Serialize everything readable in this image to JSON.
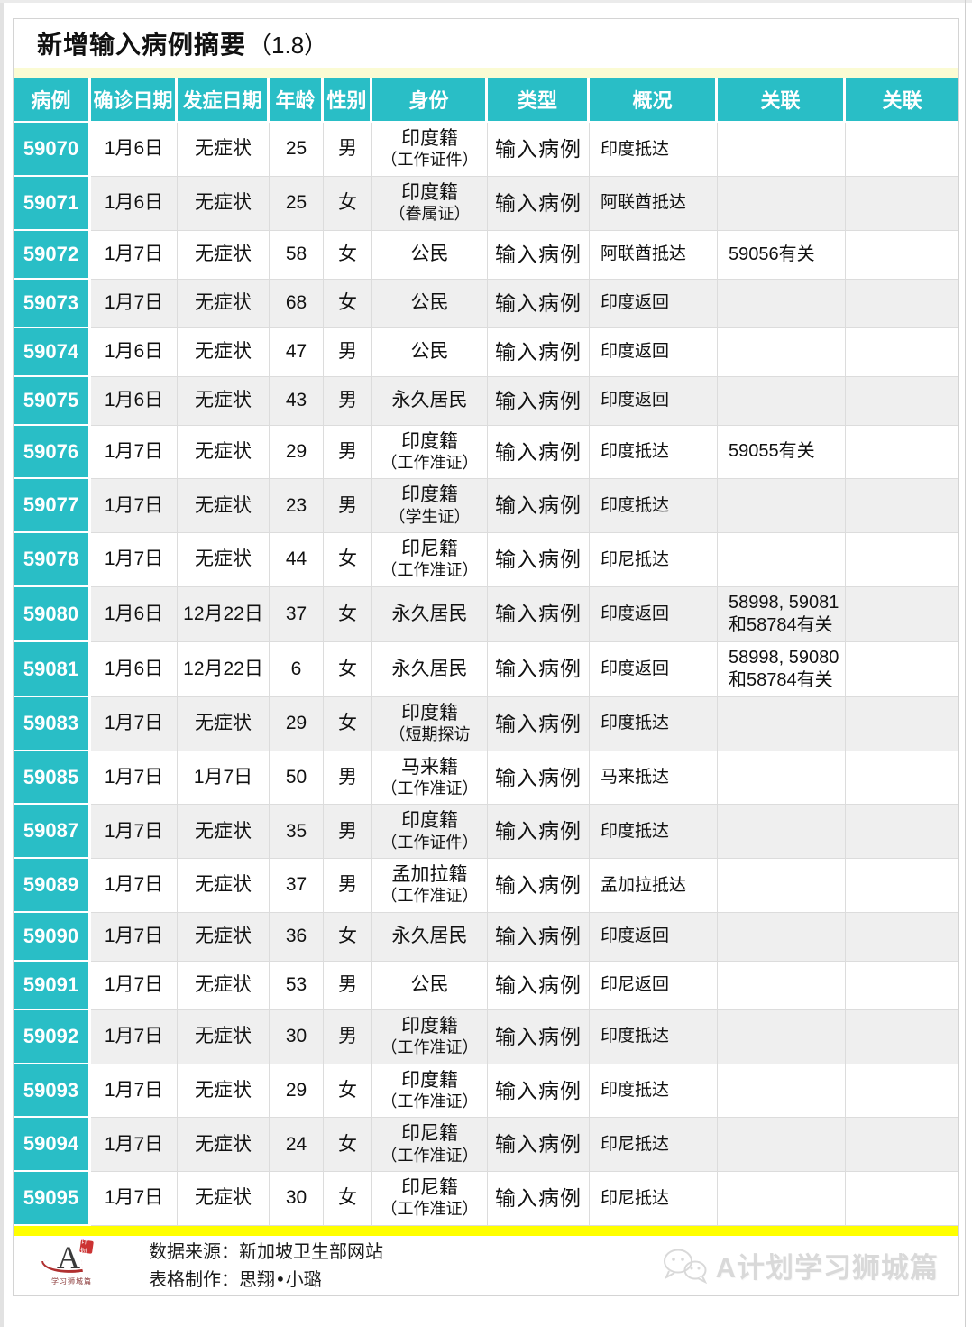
{
  "page": {
    "title": "新增输入病例摘要",
    "title_suffix": "（1.8）"
  },
  "table": {
    "headers": [
      "病例",
      "确诊日期",
      "发症日期",
      "年龄",
      "性别",
      "身份",
      "类型",
      "概况",
      "关联",
      "关联"
    ],
    "rows": [
      {
        "case": "59070",
        "confirm": "1月6日",
        "onset": "无症状",
        "age": "25",
        "gender": "男",
        "identity": "印度籍",
        "identity_sub": "（工作证件）",
        "type": "输入病例",
        "overview": "印度抵达",
        "related": "",
        "related2": ""
      },
      {
        "case": "59071",
        "confirm": "1月6日",
        "onset": "无症状",
        "age": "25",
        "gender": "女",
        "identity": "印度籍",
        "identity_sub": "（眷属证）",
        "type": "输入病例",
        "overview": "阿联酋抵达",
        "related": "",
        "related2": ""
      },
      {
        "case": "59072",
        "confirm": "1月7日",
        "onset": "无症状",
        "age": "58",
        "gender": "女",
        "identity": "公民",
        "identity_sub": "",
        "type": "输入病例",
        "overview": "阿联酋抵达",
        "related": "59056有关",
        "related2": ""
      },
      {
        "case": "59073",
        "confirm": "1月7日",
        "onset": "无症状",
        "age": "68",
        "gender": "女",
        "identity": "公民",
        "identity_sub": "",
        "type": "输入病例",
        "overview": "印度返回",
        "related": "",
        "related2": ""
      },
      {
        "case": "59074",
        "confirm": "1月6日",
        "onset": "无症状",
        "age": "47",
        "gender": "男",
        "identity": "公民",
        "identity_sub": "",
        "type": "输入病例",
        "overview": "印度返回",
        "related": "",
        "related2": ""
      },
      {
        "case": "59075",
        "confirm": "1月6日",
        "onset": "无症状",
        "age": "43",
        "gender": "男",
        "identity": "永久居民",
        "identity_sub": "",
        "type": "输入病例",
        "overview": "印度返回",
        "related": "",
        "related2": ""
      },
      {
        "case": "59076",
        "confirm": "1月7日",
        "onset": "无症状",
        "age": "29",
        "gender": "男",
        "identity": "印度籍",
        "identity_sub": "（工作准证）",
        "type": "输入病例",
        "overview": "印度抵达",
        "related": "59055有关",
        "related2": ""
      },
      {
        "case": "59077",
        "confirm": "1月7日",
        "onset": "无症状",
        "age": "23",
        "gender": "男",
        "identity": "印度籍",
        "identity_sub": "（学生证）",
        "type": "输入病例",
        "overview": "印度抵达",
        "related": "",
        "related2": ""
      },
      {
        "case": "59078",
        "confirm": "1月7日",
        "onset": "无症状",
        "age": "44",
        "gender": "女",
        "identity": "印尼籍",
        "identity_sub": "（工作准证）",
        "type": "输入病例",
        "overview": "印尼抵达",
        "related": "",
        "related2": ""
      },
      {
        "case": "59080",
        "confirm": "1月6日",
        "onset": "12月22日",
        "age": "37",
        "gender": "女",
        "identity": "永久居民",
        "identity_sub": "",
        "type": "输入病例",
        "overview": "印度返回",
        "related": "58998, 59081 和58784有关",
        "related2": ""
      },
      {
        "case": "59081",
        "confirm": "1月6日",
        "onset": "12月22日",
        "age": "6",
        "gender": "女",
        "identity": "永久居民",
        "identity_sub": "",
        "type": "输入病例",
        "overview": "印度返回",
        "related": "58998, 59080 和58784有关",
        "related2": ""
      },
      {
        "case": "59083",
        "confirm": "1月7日",
        "onset": "无症状",
        "age": "29",
        "gender": "女",
        "identity": "印度籍",
        "identity_sub": "（短期探访",
        "type": "输入病例",
        "overview": "印度抵达",
        "related": "",
        "related2": ""
      },
      {
        "case": "59085",
        "confirm": "1月7日",
        "onset": "1月7日",
        "age": "50",
        "gender": "男",
        "identity": "马来籍",
        "identity_sub": "（工作准证）",
        "type": "输入病例",
        "overview": "马来抵达",
        "related": "",
        "related2": ""
      },
      {
        "case": "59087",
        "confirm": "1月7日",
        "onset": "无症状",
        "age": "35",
        "gender": "男",
        "identity": "印度籍",
        "identity_sub": "（工作证件）",
        "type": "输入病例",
        "overview": "印度抵达",
        "related": "",
        "related2": ""
      },
      {
        "case": "59089",
        "confirm": "1月7日",
        "onset": "无症状",
        "age": "37",
        "gender": "男",
        "identity": "孟加拉籍",
        "identity_sub": "（工作准证）",
        "type": "输入病例",
        "overview": "孟加拉抵达",
        "related": "",
        "related2": ""
      },
      {
        "case": "59090",
        "confirm": "1月7日",
        "onset": "无症状",
        "age": "36",
        "gender": "女",
        "identity": "永久居民",
        "identity_sub": "",
        "type": "输入病例",
        "overview": "印度返回",
        "related": "",
        "related2": ""
      },
      {
        "case": "59091",
        "confirm": "1月7日",
        "onset": "无症状",
        "age": "53",
        "gender": "男",
        "identity": "公民",
        "identity_sub": "",
        "type": "输入病例",
        "overview": "印尼返回",
        "related": "",
        "related2": ""
      },
      {
        "case": "59092",
        "confirm": "1月7日",
        "onset": "无症状",
        "age": "30",
        "gender": "男",
        "identity": "印度籍",
        "identity_sub": "（工作准证）",
        "type": "输入病例",
        "overview": "印度抵达",
        "related": "",
        "related2": ""
      },
      {
        "case": "59093",
        "confirm": "1月7日",
        "onset": "无症状",
        "age": "29",
        "gender": "女",
        "identity": "印度籍",
        "identity_sub": "（工作准证）",
        "type": "输入病例",
        "overview": "印度抵达",
        "related": "",
        "related2": ""
      },
      {
        "case": "59094",
        "confirm": "1月7日",
        "onset": "无症状",
        "age": "24",
        "gender": "女",
        "identity": "印尼籍",
        "identity_sub": "（工作准证）",
        "type": "输入病例",
        "overview": "印尼抵达",
        "related": "",
        "related2": ""
      },
      {
        "case": "59095",
        "confirm": "1月7日",
        "onset": "无症状",
        "age": "30",
        "gender": "女",
        "identity": "印尼籍",
        "identity_sub": "（工作准证）",
        "type": "输入病例",
        "overview": "印尼抵达",
        "related": "",
        "related2": ""
      }
    ]
  },
  "footer": {
    "source_line": "数据来源：新加坡卫生部网站",
    "maker_line": "表格制作：思翔•小璐",
    "watermark": "A计划学习狮城篇",
    "logo_letter": "A",
    "logo_seal": "计划",
    "logo_sub": "学习狮城篇"
  },
  "colors": {
    "teal": "#29bec6",
    "pale_yellow": "#fbfbd3",
    "bright_yellow": "#ffff00",
    "row_alt": "#efefef",
    "grid_line": "#dcdcdc"
  }
}
